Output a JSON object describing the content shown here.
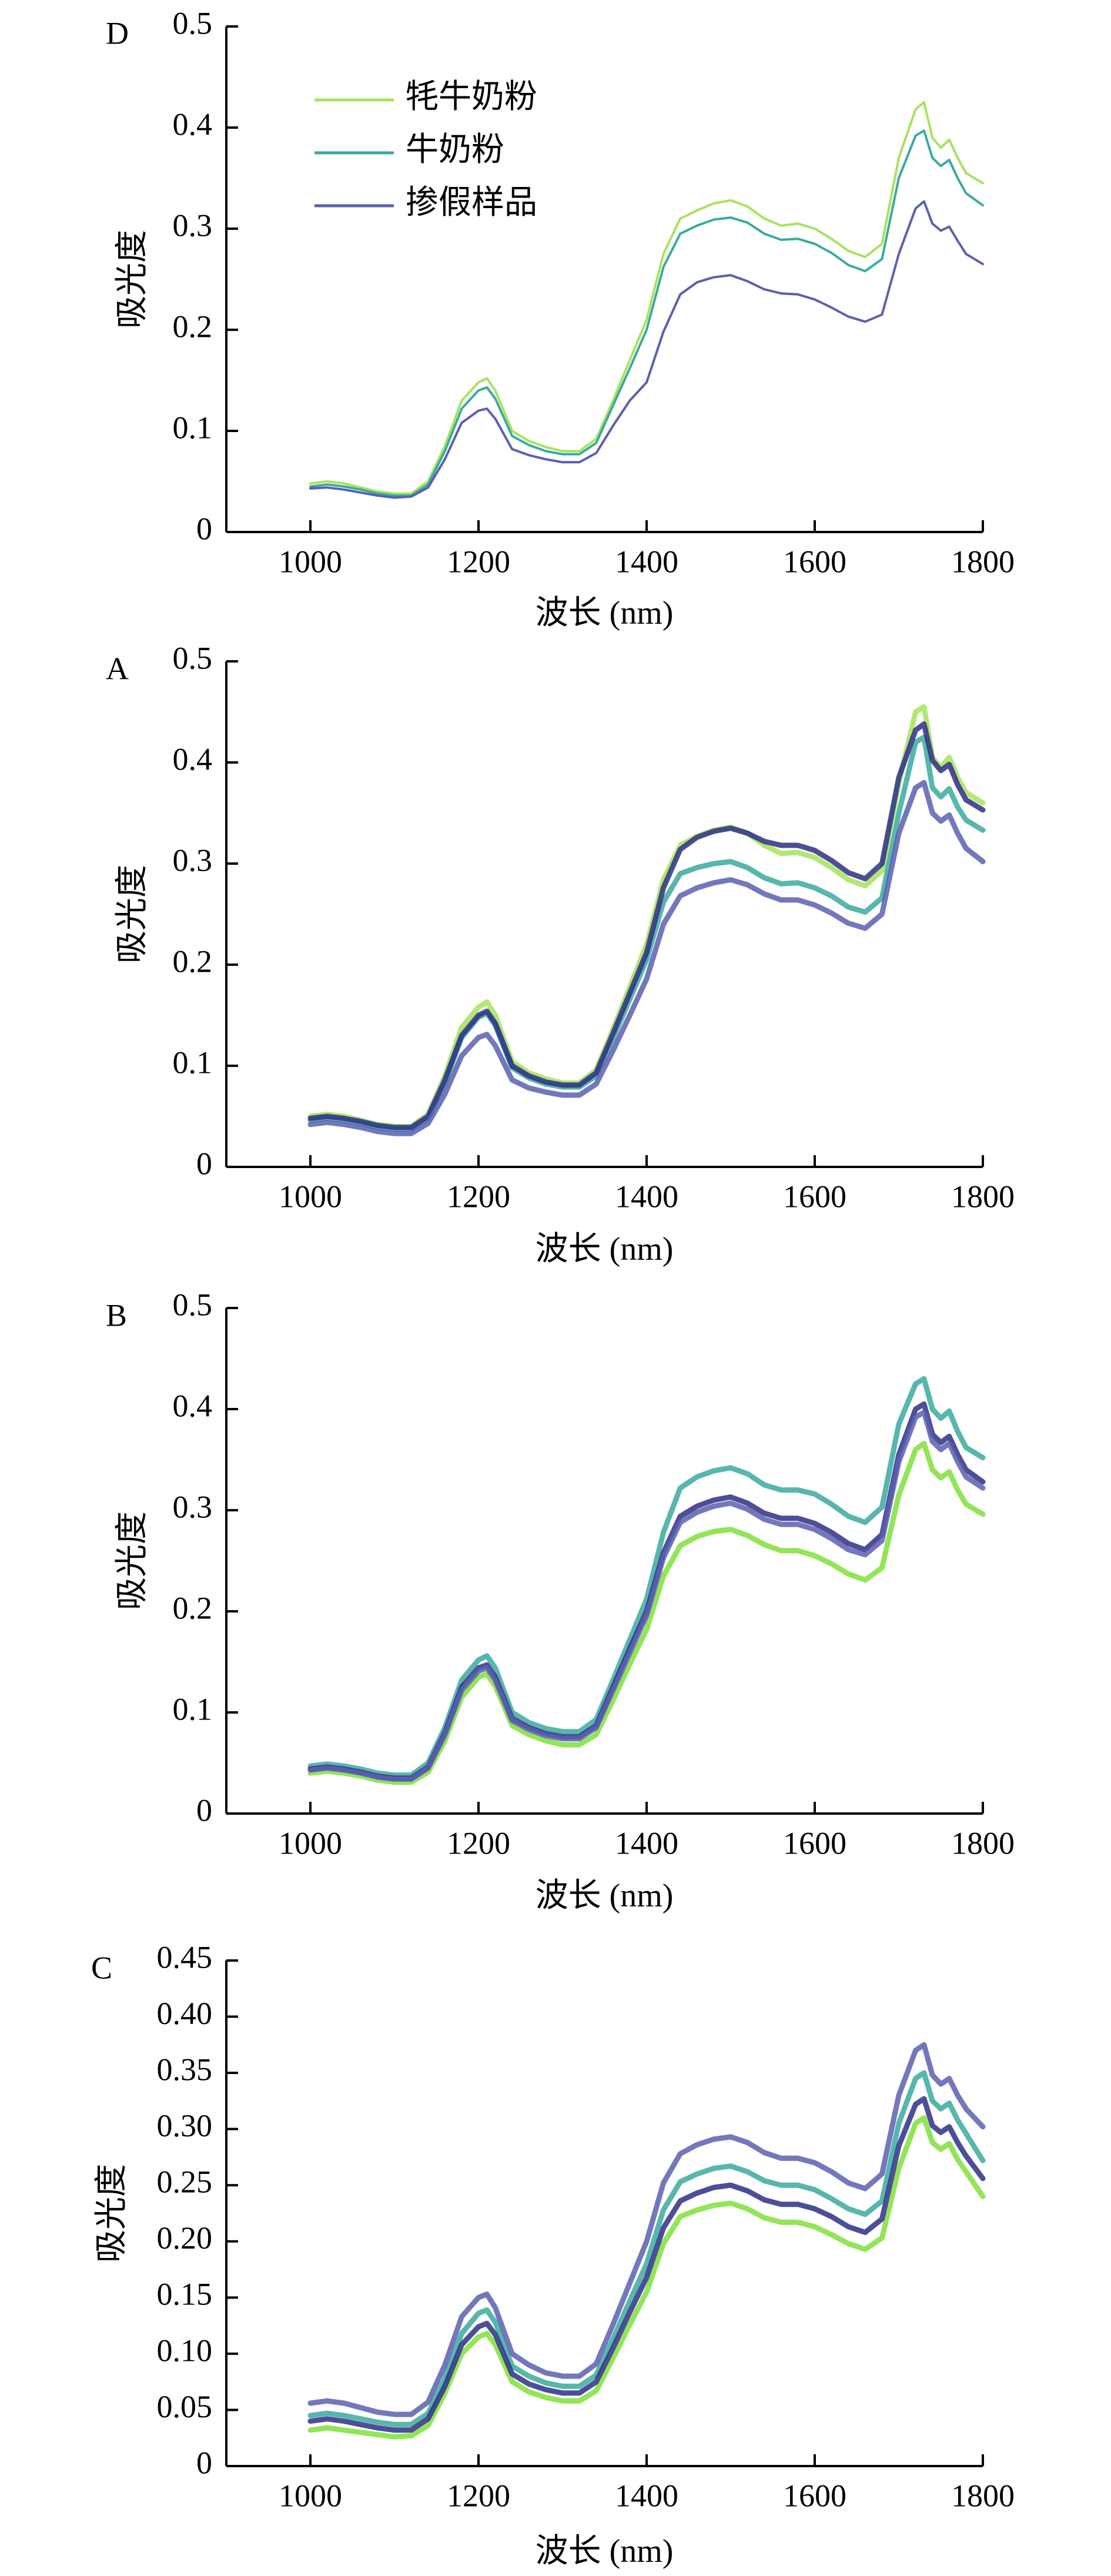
{
  "chart_data": [
    {
      "panel": "D",
      "type": "line",
      "xlabel": "波长 (nm)",
      "ylabel": "吸光度",
      "xlim": [
        900,
        1800
      ],
      "ylim": [
        0,
        0.5
      ],
      "xticks": [
        "1000",
        "1200",
        "1400",
        "1600",
        "1800"
      ],
      "yticks": [
        "0",
        "0.1",
        "0.2",
        "0.3",
        "0.4",
        "0.5"
      ],
      "legend_position": "top-left",
      "x": [
        1000,
        1020,
        1040,
        1060,
        1080,
        1100,
        1120,
        1140,
        1160,
        1180,
        1200,
        1210,
        1220,
        1240,
        1260,
        1280,
        1300,
        1320,
        1340,
        1360,
        1380,
        1400,
        1420,
        1440,
        1460,
        1480,
        1500,
        1520,
        1540,
        1560,
        1580,
        1600,
        1620,
        1640,
        1660,
        1680,
        1700,
        1720,
        1730,
        1740,
        1750,
        1760,
        1770,
        1780,
        1800
      ],
      "series": [
        {
          "name": "牦牛奶粉",
          "color": "#a6e35c",
          "values": [
            0.048,
            0.05,
            0.048,
            0.044,
            0.04,
            0.038,
            0.038,
            0.05,
            0.085,
            0.13,
            0.148,
            0.152,
            0.14,
            0.1,
            0.09,
            0.084,
            0.08,
            0.08,
            0.092,
            0.13,
            0.17,
            0.21,
            0.275,
            0.31,
            0.318,
            0.325,
            0.328,
            0.322,
            0.31,
            0.303,
            0.305,
            0.3,
            0.29,
            0.278,
            0.272,
            0.285,
            0.37,
            0.418,
            0.425,
            0.39,
            0.38,
            0.388,
            0.37,
            0.355,
            0.345
          ]
        },
        {
          "name": "牛奶粉",
          "color": "#3aaa9e",
          "values": [
            0.045,
            0.047,
            0.045,
            0.042,
            0.038,
            0.036,
            0.036,
            0.047,
            0.08,
            0.122,
            0.14,
            0.143,
            0.132,
            0.095,
            0.086,
            0.08,
            0.077,
            0.077,
            0.088,
            0.125,
            0.162,
            0.2,
            0.262,
            0.295,
            0.303,
            0.309,
            0.311,
            0.306,
            0.295,
            0.289,
            0.29,
            0.285,
            0.276,
            0.264,
            0.258,
            0.27,
            0.35,
            0.392,
            0.397,
            0.37,
            0.362,
            0.368,
            0.35,
            0.335,
            0.323
          ]
        },
        {
          "name": "掺假样品",
          "color": "#5b5fb0",
          "values": [
            0.043,
            0.044,
            0.042,
            0.039,
            0.036,
            0.034,
            0.035,
            0.044,
            0.072,
            0.108,
            0.12,
            0.122,
            0.112,
            0.082,
            0.076,
            0.072,
            0.069,
            0.069,
            0.078,
            0.105,
            0.13,
            0.148,
            0.198,
            0.235,
            0.247,
            0.252,
            0.254,
            0.248,
            0.24,
            0.236,
            0.235,
            0.23,
            0.222,
            0.213,
            0.208,
            0.215,
            0.275,
            0.32,
            0.327,
            0.305,
            0.298,
            0.302,
            0.288,
            0.275,
            0.265
          ]
        }
      ]
    },
    {
      "panel": "A",
      "type": "line",
      "xlabel": "波长 (nm)",
      "ylabel": "吸光度",
      "xlim": [
        900,
        1800
      ],
      "ylim": [
        0,
        0.5
      ],
      "xticks": [
        "1000",
        "1200",
        "1400",
        "1600",
        "1800"
      ],
      "yticks": [
        "0",
        "0.1",
        "0.2",
        "0.3",
        "0.4",
        "0.5"
      ],
      "x": [
        1000,
        1020,
        1040,
        1060,
        1080,
        1100,
        1120,
        1140,
        1160,
        1180,
        1200,
        1210,
        1220,
        1240,
        1260,
        1280,
        1300,
        1320,
        1340,
        1360,
        1380,
        1400,
        1420,
        1440,
        1460,
        1480,
        1500,
        1520,
        1540,
        1560,
        1580,
        1600,
        1620,
        1640,
        1660,
        1680,
        1700,
        1720,
        1730,
        1740,
        1750,
        1760,
        1770,
        1780,
        1800
      ],
      "series": [
        {
          "color": "#a6e35c",
          "values": [
            0.05,
            0.052,
            0.05,
            0.046,
            0.042,
            0.04,
            0.04,
            0.052,
            0.09,
            0.138,
            0.158,
            0.163,
            0.15,
            0.104,
            0.093,
            0.087,
            0.083,
            0.083,
            0.096,
            0.136,
            0.178,
            0.22,
            0.284,
            0.318,
            0.327,
            0.333,
            0.336,
            0.33,
            0.318,
            0.31,
            0.311,
            0.306,
            0.296,
            0.284,
            0.278,
            0.293,
            0.38,
            0.45,
            0.455,
            0.405,
            0.395,
            0.405,
            0.385,
            0.37,
            0.36
          ]
        },
        {
          "color": "#3aaa9e",
          "values": [
            0.046,
            0.048,
            0.046,
            0.043,
            0.039,
            0.037,
            0.037,
            0.048,
            0.083,
            0.128,
            0.148,
            0.152,
            0.14,
            0.098,
            0.088,
            0.082,
            0.079,
            0.079,
            0.09,
            0.127,
            0.166,
            0.205,
            0.262,
            0.29,
            0.296,
            0.3,
            0.302,
            0.296,
            0.286,
            0.28,
            0.281,
            0.276,
            0.268,
            0.257,
            0.252,
            0.266,
            0.35,
            0.42,
            0.425,
            0.375,
            0.366,
            0.374,
            0.356,
            0.343,
            0.333
          ]
        },
        {
          "color": "#2e2f86",
          "values": [
            0.048,
            0.05,
            0.048,
            0.045,
            0.041,
            0.039,
            0.039,
            0.05,
            0.086,
            0.13,
            0.15,
            0.154,
            0.142,
            0.1,
            0.09,
            0.084,
            0.081,
            0.081,
            0.093,
            0.132,
            0.172,
            0.212,
            0.276,
            0.314,
            0.326,
            0.332,
            0.335,
            0.33,
            0.322,
            0.318,
            0.318,
            0.313,
            0.303,
            0.291,
            0.285,
            0.3,
            0.385,
            0.432,
            0.438,
            0.402,
            0.392,
            0.398,
            0.378,
            0.363,
            0.353
          ]
        },
        {
          "color": "#5b5fb0",
          "values": [
            0.042,
            0.044,
            0.042,
            0.039,
            0.035,
            0.033,
            0.033,
            0.043,
            0.072,
            0.11,
            0.128,
            0.131,
            0.12,
            0.086,
            0.078,
            0.074,
            0.071,
            0.071,
            0.082,
            0.115,
            0.15,
            0.186,
            0.24,
            0.268,
            0.276,
            0.281,
            0.284,
            0.279,
            0.27,
            0.264,
            0.264,
            0.259,
            0.251,
            0.241,
            0.236,
            0.25,
            0.33,
            0.375,
            0.38,
            0.35,
            0.342,
            0.348,
            0.33,
            0.315,
            0.302
          ]
        }
      ]
    },
    {
      "panel": "B",
      "type": "line",
      "xlabel": "波长 (nm)",
      "ylabel": "吸光度",
      "xlim": [
        900,
        1800
      ],
      "ylim": [
        0,
        0.5
      ],
      "xticks": [
        "1000",
        "1200",
        "1400",
        "1600",
        "1800"
      ],
      "yticks": [
        "0",
        "0.1",
        "0.2",
        "0.3",
        "0.4",
        "0.5"
      ],
      "x": [
        1000,
        1020,
        1040,
        1060,
        1080,
        1100,
        1120,
        1140,
        1160,
        1180,
        1200,
        1210,
        1220,
        1240,
        1260,
        1280,
        1300,
        1320,
        1340,
        1360,
        1380,
        1400,
        1420,
        1440,
        1460,
        1480,
        1500,
        1520,
        1540,
        1560,
        1580,
        1600,
        1620,
        1640,
        1660,
        1680,
        1700,
        1720,
        1730,
        1740,
        1750,
        1760,
        1770,
        1780,
        1800
      ],
      "series": [
        {
          "color": "#7fe03a",
          "values": [
            0.04,
            0.042,
            0.04,
            0.037,
            0.033,
            0.031,
            0.031,
            0.041,
            0.072,
            0.115,
            0.135,
            0.138,
            0.126,
            0.087,
            0.078,
            0.072,
            0.068,
            0.068,
            0.078,
            0.112,
            0.148,
            0.182,
            0.235,
            0.265,
            0.274,
            0.279,
            0.281,
            0.275,
            0.266,
            0.26,
            0.26,
            0.255,
            0.247,
            0.237,
            0.231,
            0.243,
            0.315,
            0.36,
            0.366,
            0.34,
            0.332,
            0.338,
            0.32,
            0.306,
            0.296
          ]
        },
        {
          "color": "#3aaa9e",
          "values": [
            0.047,
            0.049,
            0.047,
            0.044,
            0.04,
            0.038,
            0.038,
            0.05,
            0.085,
            0.132,
            0.152,
            0.156,
            0.144,
            0.1,
            0.09,
            0.084,
            0.081,
            0.081,
            0.093,
            0.132,
            0.172,
            0.212,
            0.278,
            0.322,
            0.333,
            0.339,
            0.342,
            0.336,
            0.325,
            0.32,
            0.32,
            0.316,
            0.306,
            0.294,
            0.288,
            0.303,
            0.385,
            0.425,
            0.43,
            0.4,
            0.391,
            0.398,
            0.378,
            0.362,
            0.352
          ]
        },
        {
          "color": "#2e2f86",
          "values": [
            0.044,
            0.046,
            0.044,
            0.041,
            0.037,
            0.035,
            0.035,
            0.046,
            0.08,
            0.125,
            0.144,
            0.147,
            0.135,
            0.094,
            0.085,
            0.079,
            0.076,
            0.076,
            0.087,
            0.125,
            0.163,
            0.2,
            0.258,
            0.294,
            0.304,
            0.31,
            0.313,
            0.307,
            0.297,
            0.292,
            0.292,
            0.287,
            0.278,
            0.267,
            0.261,
            0.276,
            0.355,
            0.4,
            0.405,
            0.375,
            0.367,
            0.373,
            0.355,
            0.34,
            0.328
          ]
        },
        {
          "color": "#5b5fb0",
          "values": [
            0.043,
            0.045,
            0.043,
            0.04,
            0.036,
            0.034,
            0.034,
            0.045,
            0.078,
            0.122,
            0.141,
            0.144,
            0.132,
            0.092,
            0.083,
            0.077,
            0.074,
            0.074,
            0.085,
            0.122,
            0.159,
            0.196,
            0.253,
            0.288,
            0.298,
            0.304,
            0.307,
            0.301,
            0.291,
            0.286,
            0.286,
            0.281,
            0.272,
            0.261,
            0.256,
            0.27,
            0.348,
            0.392,
            0.397,
            0.368,
            0.36,
            0.366,
            0.348,
            0.333,
            0.322
          ]
        }
      ]
    },
    {
      "panel": "C",
      "type": "line",
      "xlabel": "波长 (nm)",
      "ylabel": "吸光度",
      "xlim": [
        900,
        1800
      ],
      "ylim": [
        0,
        0.45
      ],
      "xticks": [
        "1000",
        "1200",
        "1400",
        "1600",
        "1800"
      ],
      "yticks": [
        "0",
        "0.05",
        "0.10",
        "0.15",
        "0.20",
        "0.25",
        "0.30",
        "0.35",
        "0.40",
        "0.45"
      ],
      "x": [
        1000,
        1020,
        1040,
        1060,
        1080,
        1100,
        1120,
        1140,
        1160,
        1180,
        1200,
        1210,
        1220,
        1240,
        1260,
        1280,
        1300,
        1320,
        1340,
        1360,
        1380,
        1400,
        1420,
        1440,
        1460,
        1480,
        1500,
        1520,
        1540,
        1560,
        1580,
        1600,
        1620,
        1640,
        1660,
        1680,
        1700,
        1720,
        1730,
        1740,
        1750,
        1760,
        1770,
        1780,
        1800
      ],
      "series": [
        {
          "color": "#7fe03a",
          "values": [
            0.032,
            0.034,
            0.032,
            0.03,
            0.028,
            0.026,
            0.027,
            0.036,
            0.065,
            0.1,
            0.115,
            0.118,
            0.108,
            0.075,
            0.066,
            0.061,
            0.058,
            0.058,
            0.067,
            0.096,
            0.126,
            0.155,
            0.198,
            0.222,
            0.228,
            0.232,
            0.234,
            0.229,
            0.221,
            0.217,
            0.217,
            0.213,
            0.206,
            0.198,
            0.193,
            0.203,
            0.265,
            0.305,
            0.31,
            0.288,
            0.282,
            0.287,
            0.273,
            0.262,
            0.24
          ]
        },
        {
          "color": "#3aaa9e",
          "values": [
            0.045,
            0.047,
            0.045,
            0.042,
            0.039,
            0.037,
            0.037,
            0.047,
            0.078,
            0.118,
            0.136,
            0.139,
            0.128,
            0.089,
            0.08,
            0.074,
            0.071,
            0.071,
            0.081,
            0.113,
            0.147,
            0.18,
            0.228,
            0.253,
            0.26,
            0.265,
            0.267,
            0.262,
            0.254,
            0.25,
            0.25,
            0.246,
            0.238,
            0.229,
            0.224,
            0.236,
            0.305,
            0.345,
            0.35,
            0.325,
            0.318,
            0.323,
            0.308,
            0.296,
            0.272
          ]
        },
        {
          "color": "#2e2f86",
          "values": [
            0.04,
            0.042,
            0.04,
            0.037,
            0.034,
            0.032,
            0.032,
            0.042,
            0.071,
            0.108,
            0.124,
            0.127,
            0.117,
            0.082,
            0.073,
            0.068,
            0.065,
            0.065,
            0.075,
            0.105,
            0.137,
            0.168,
            0.212,
            0.236,
            0.243,
            0.248,
            0.25,
            0.245,
            0.237,
            0.233,
            0.233,
            0.229,
            0.222,
            0.213,
            0.208,
            0.22,
            0.285,
            0.322,
            0.327,
            0.303,
            0.297,
            0.302,
            0.288,
            0.276,
            0.256
          ]
        },
        {
          "color": "#5b5fb0",
          "values": [
            0.056,
            0.058,
            0.056,
            0.052,
            0.048,
            0.046,
            0.046,
            0.057,
            0.09,
            0.133,
            0.15,
            0.153,
            0.141,
            0.1,
            0.09,
            0.083,
            0.08,
            0.08,
            0.091,
            0.126,
            0.163,
            0.2,
            0.252,
            0.278,
            0.286,
            0.291,
            0.293,
            0.288,
            0.279,
            0.274,
            0.274,
            0.27,
            0.262,
            0.252,
            0.247,
            0.26,
            0.33,
            0.37,
            0.375,
            0.348,
            0.34,
            0.345,
            0.33,
            0.318,
            0.302
          ]
        }
      ]
    }
  ]
}
